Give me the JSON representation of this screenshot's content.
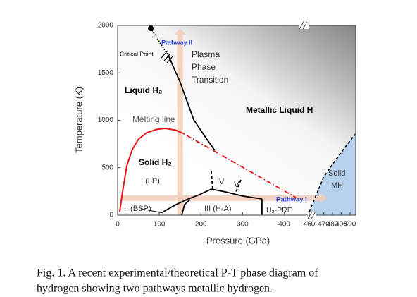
{
  "chart_data": {
    "type": "phase-diagram",
    "x_label": "Pressure (GPa)",
    "y_label": "Temperature (K)",
    "x_segments": [
      {
        "xlim": [
          0,
          460
        ],
        "xticks": [
          0,
          100,
          200,
          300,
          400
        ]
      },
      {
        "xlim": [
          460,
          506
        ],
        "xticks": [
          460,
          470,
          480,
          490,
          500
        ]
      }
    ],
    "ylim": [
      0,
      2000
    ],
    "yticks": [
      0,
      500,
      1000,
      1500,
      2000
    ],
    "lines": [
      {
        "color": "#e8161b",
        "style": "solid",
        "x": [
          5,
          12,
          22,
          35,
          50,
          70,
          95,
          115,
          140,
          161
        ],
        "y": [
          37,
          250,
          520,
          690,
          800,
          870,
          905,
          914,
          895,
          855
        ]
      },
      {
        "color": "#e8161b",
        "style": "dashdot",
        "x": [
          166,
          428
        ],
        "y": [
          840,
          186
        ]
      },
      {
        "color": "#000000",
        "style": "solid",
        "x": [
          123,
          135,
          149,
          165,
          183,
          208,
          233
        ],
        "y": [
          1673,
          1550,
          1413,
          1220,
          1004,
          840,
          684
        ]
      },
      {
        "color": "#000000",
        "style": "dotted",
        "x": [
          79.5,
          123
        ],
        "y": [
          1970,
          1673
        ]
      },
      {
        "color": "#000000",
        "style": "solid",
        "x": [
          224.9,
          258.7,
          301,
          346.6
        ],
        "y": [
          275,
          245,
          201,
          171
        ]
      },
      {
        "color": "#000000",
        "style": "solid",
        "x": [
          110,
          140.4,
          165.7,
          196.2,
          224.9
        ],
        "y": [
          37,
          112,
          164,
          216,
          275
        ]
      },
      {
        "color": "#000000",
        "style": "solid",
        "x": [
          153.9,
          160.7,
          174.2
        ],
        "y": [
          0,
          112,
          164
        ]
      },
      {
        "color": "#000000",
        "style": "solid",
        "x": [
          346.6,
          346.6
        ],
        "y": [
          171,
          0
        ]
      },
      {
        "color": "#000000",
        "style": "dashed",
        "x": [
          224.9,
          228.3
        ],
        "y": [
          461,
          275
        ]
      },
      {
        "color": "#000000",
        "style": "dashed",
        "x": [
          296,
          284
        ],
        "y": [
          372,
          245
        ]
      },
      {
        "color": "#000000",
        "style": "dashed",
        "x": [
          460,
          470.4,
          490.4,
          506
        ],
        "y": [
          37,
          409,
          669,
          855
        ]
      }
    ],
    "critical_point": {
      "x": 79.5,
      "y": 1970,
      "color": "#000000"
    },
    "pathways": [
      {
        "x": [
          150,
          150
        ],
        "y": [
          0,
          1970
        ],
        "color": "#f0cdb8"
      },
      {
        "x": [
          5,
          474
        ],
        "y": [
          180,
          180
        ],
        "color": "#f0cdb8"
      }
    ],
    "solid_region_color": "#b8d2ee",
    "annotations": [
      {
        "text": "Pathway II",
        "color": "#1f3fd8",
        "bold": true
      },
      {
        "text": "Critical Point",
        "color": "#000000",
        "bold": false
      },
      {
        "text": "Plasma",
        "color": "#333333",
        "bold": false
      },
      {
        "text": "Phase",
        "color": "#333333",
        "bold": false
      },
      {
        "text": "Transition",
        "color": "#333333",
        "bold": false
      },
      {
        "text": "Liquid H₂",
        "color": "#000000",
        "bold": true
      },
      {
        "text": "Metallic Liquid H",
        "color": "#000000",
        "bold": true
      },
      {
        "text": "Melting line",
        "color": "#555555",
        "bold": false
      },
      {
        "text": "Solid H₂",
        "color": "#000000",
        "bold": true
      },
      {
        "text": "I (LP)",
        "color": "#333333",
        "bold": false
      },
      {
        "text": "IV",
        "color": "#333333",
        "bold": false
      },
      {
        "text": "V",
        "color": "#333333",
        "bold": false
      },
      {
        "text": "II (BSP)",
        "color": "#333333",
        "bold": false
      },
      {
        "text": "III (H-A)",
        "color": "#333333",
        "bold": false
      },
      {
        "text": "Pathway I",
        "color": "#1f3fd8",
        "bold": true
      },
      {
        "text": "H₂-PRE",
        "color": "#333333",
        "bold": false
      },
      {
        "text": "Solid",
        "color": "#333333",
        "bold": false
      },
      {
        "text": "MH",
        "color": "#333333",
        "bold": false
      }
    ]
  },
  "caption": {
    "lines": [
      "Fig. 1.  A recent experimental/theoretical P-T phase diagram of",
      "hydrogen showing two pathways metallic hydrogen."
    ]
  }
}
